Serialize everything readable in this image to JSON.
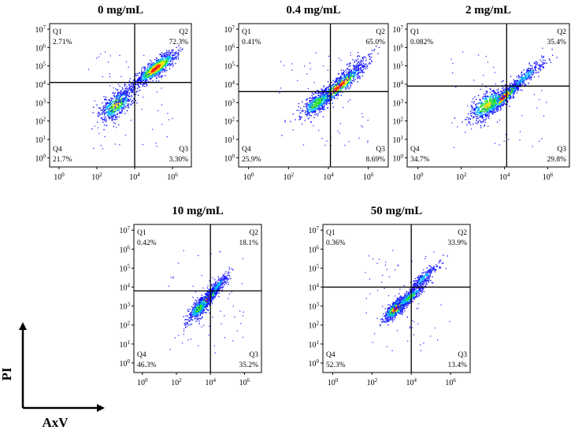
{
  "figure": {
    "axis_labels": {
      "x": "AxV",
      "y": "PI"
    },
    "colors": {
      "low": "#1a1aff",
      "mid1": "#00b5ff",
      "mid2": "#2ee62e",
      "high": "#ffe600",
      "peak": "#ff2200"
    }
  },
  "chart_data": [
    {
      "type": "scatter",
      "title": "0 mg/mL",
      "xlabel": "AxV",
      "ylabel": "PI",
      "x_ticks": [
        "10^0",
        "10^2",
        "10^4",
        "10^6"
      ],
      "y_ticks": [
        "10^0",
        "10^1",
        "10^2",
        "10^3",
        "10^4",
        "10^5",
        "10^6",
        "10^7"
      ],
      "x_gate": 4.0,
      "y_gate": 4.1,
      "quadrants": {
        "Q1": "2.71%",
        "Q2": "72.3%",
        "Q3": "3.30%",
        "Q4": "21.7%"
      },
      "clusters": [
        {
          "cx": 5.1,
          "cy": 4.9,
          "sx": 0.55,
          "sy": 0.45,
          "rho": 0.85,
          "n": 900
        },
        {
          "cx": 3.0,
          "cy": 2.9,
          "sx": 0.45,
          "sy": 0.45,
          "rho": 0.6,
          "n": 500
        },
        {
          "cx": 3.6,
          "cy": 3.6,
          "sx": 0.6,
          "sy": 0.6,
          "rho": 0.9,
          "n": 160
        }
      ]
    },
    {
      "type": "scatter",
      "title": "0.4 mg/mL",
      "xlabel": "AxV",
      "ylabel": "PI",
      "x_ticks": [
        "10^0",
        "10^2",
        "10^4",
        "10^6"
      ],
      "y_ticks": [
        "10^0",
        "10^1",
        "10^2",
        "10^3",
        "10^4",
        "10^5",
        "10^6",
        "10^7"
      ],
      "x_gate": 4.1,
      "y_gate": 3.6,
      "quadrants": {
        "Q1": "0.41%",
        "Q2": "65.0%",
        "Q3": "8.69%",
        "Q4": "25.9%"
      },
      "clusters": [
        {
          "cx": 4.5,
          "cy": 3.9,
          "sx": 0.65,
          "sy": 0.6,
          "rho": 0.93,
          "n": 800
        },
        {
          "cx": 3.4,
          "cy": 3.0,
          "sx": 0.4,
          "sy": 0.4,
          "rho": 0.7,
          "n": 450
        },
        {
          "cx": 5.0,
          "cy": 4.7,
          "sx": 0.6,
          "sy": 0.6,
          "rho": 0.9,
          "n": 160
        }
      ]
    },
    {
      "type": "scatter",
      "title": "2 mg/mL",
      "xlabel": "AxV",
      "ylabel": "PI",
      "x_ticks": [
        "10^0",
        "10^2",
        "10^4",
        "10^6"
      ],
      "y_ticks": [
        "10^0",
        "10^1",
        "10^2",
        "10^3",
        "10^4",
        "10^5",
        "10^6",
        "10^7"
      ],
      "x_gate": 4.1,
      "y_gate": 3.9,
      "quadrants": {
        "Q1": "0.082%",
        "Q2": "35.4%",
        "Q3": "29.8%",
        "Q4": "34.7%"
      },
      "clusters": [
        {
          "cx": 3.9,
          "cy": 3.3,
          "sx": 0.45,
          "sy": 0.45,
          "rho": 0.9,
          "n": 750
        },
        {
          "cx": 3.2,
          "cy": 2.9,
          "sx": 0.45,
          "sy": 0.45,
          "rho": 0.6,
          "n": 500
        },
        {
          "cx": 4.9,
          "cy": 4.4,
          "sx": 0.55,
          "sy": 0.55,
          "rho": 0.93,
          "n": 250
        }
      ]
    },
    {
      "type": "scatter",
      "title": "10 mg/mL",
      "xlabel": "AxV",
      "ylabel": "PI",
      "x_ticks": [
        "10^0",
        "10^2",
        "10^4",
        "10^6"
      ],
      "y_ticks": [
        "10^0",
        "10^1",
        "10^2",
        "10^3",
        "10^4",
        "10^5",
        "10^6",
        "10^7"
      ],
      "x_gate": 4.0,
      "y_gate": 3.8,
      "quadrants": {
        "Q1": "0.42%",
        "Q2": "18.1%",
        "Q3": "35.2%",
        "Q4": "46.3%"
      },
      "clusters": [
        {
          "cx": 3.8,
          "cy": 3.4,
          "sx": 0.35,
          "sy": 0.35,
          "rho": 0.9,
          "n": 800
        },
        {
          "cx": 3.3,
          "cy": 2.9,
          "sx": 0.35,
          "sy": 0.35,
          "rho": 0.7,
          "n": 400
        },
        {
          "cx": 4.4,
          "cy": 4.1,
          "sx": 0.4,
          "sy": 0.4,
          "rho": 0.9,
          "n": 220
        }
      ]
    },
    {
      "type": "scatter",
      "title": "50 mg/mL",
      "xlabel": "AxV",
      "ylabel": "PI",
      "x_ticks": [
        "10^0",
        "10^2",
        "10^4",
        "10^6"
      ],
      "y_ticks": [
        "10^0",
        "10^1",
        "10^2",
        "10^3",
        "10^4",
        "10^5",
        "10^6",
        "10^7"
      ],
      "x_gate": 4.0,
      "y_gate": 4.0,
      "quadrants": {
        "Q1": "0.36%",
        "Q2": "33.9%",
        "Q3": "13.4%",
        "Q4": "52.3%"
      },
      "clusters": [
        {
          "cx": 3.2,
          "cy": 2.9,
          "sx": 0.3,
          "sy": 0.3,
          "rho": 0.75,
          "n": 800
        },
        {
          "cx": 3.9,
          "cy": 3.5,
          "sx": 0.4,
          "sy": 0.35,
          "rho": 0.9,
          "n": 400
        },
        {
          "cx": 4.6,
          "cy": 4.5,
          "sx": 0.4,
          "sy": 0.4,
          "rho": 0.92,
          "n": 250
        }
      ]
    }
  ]
}
